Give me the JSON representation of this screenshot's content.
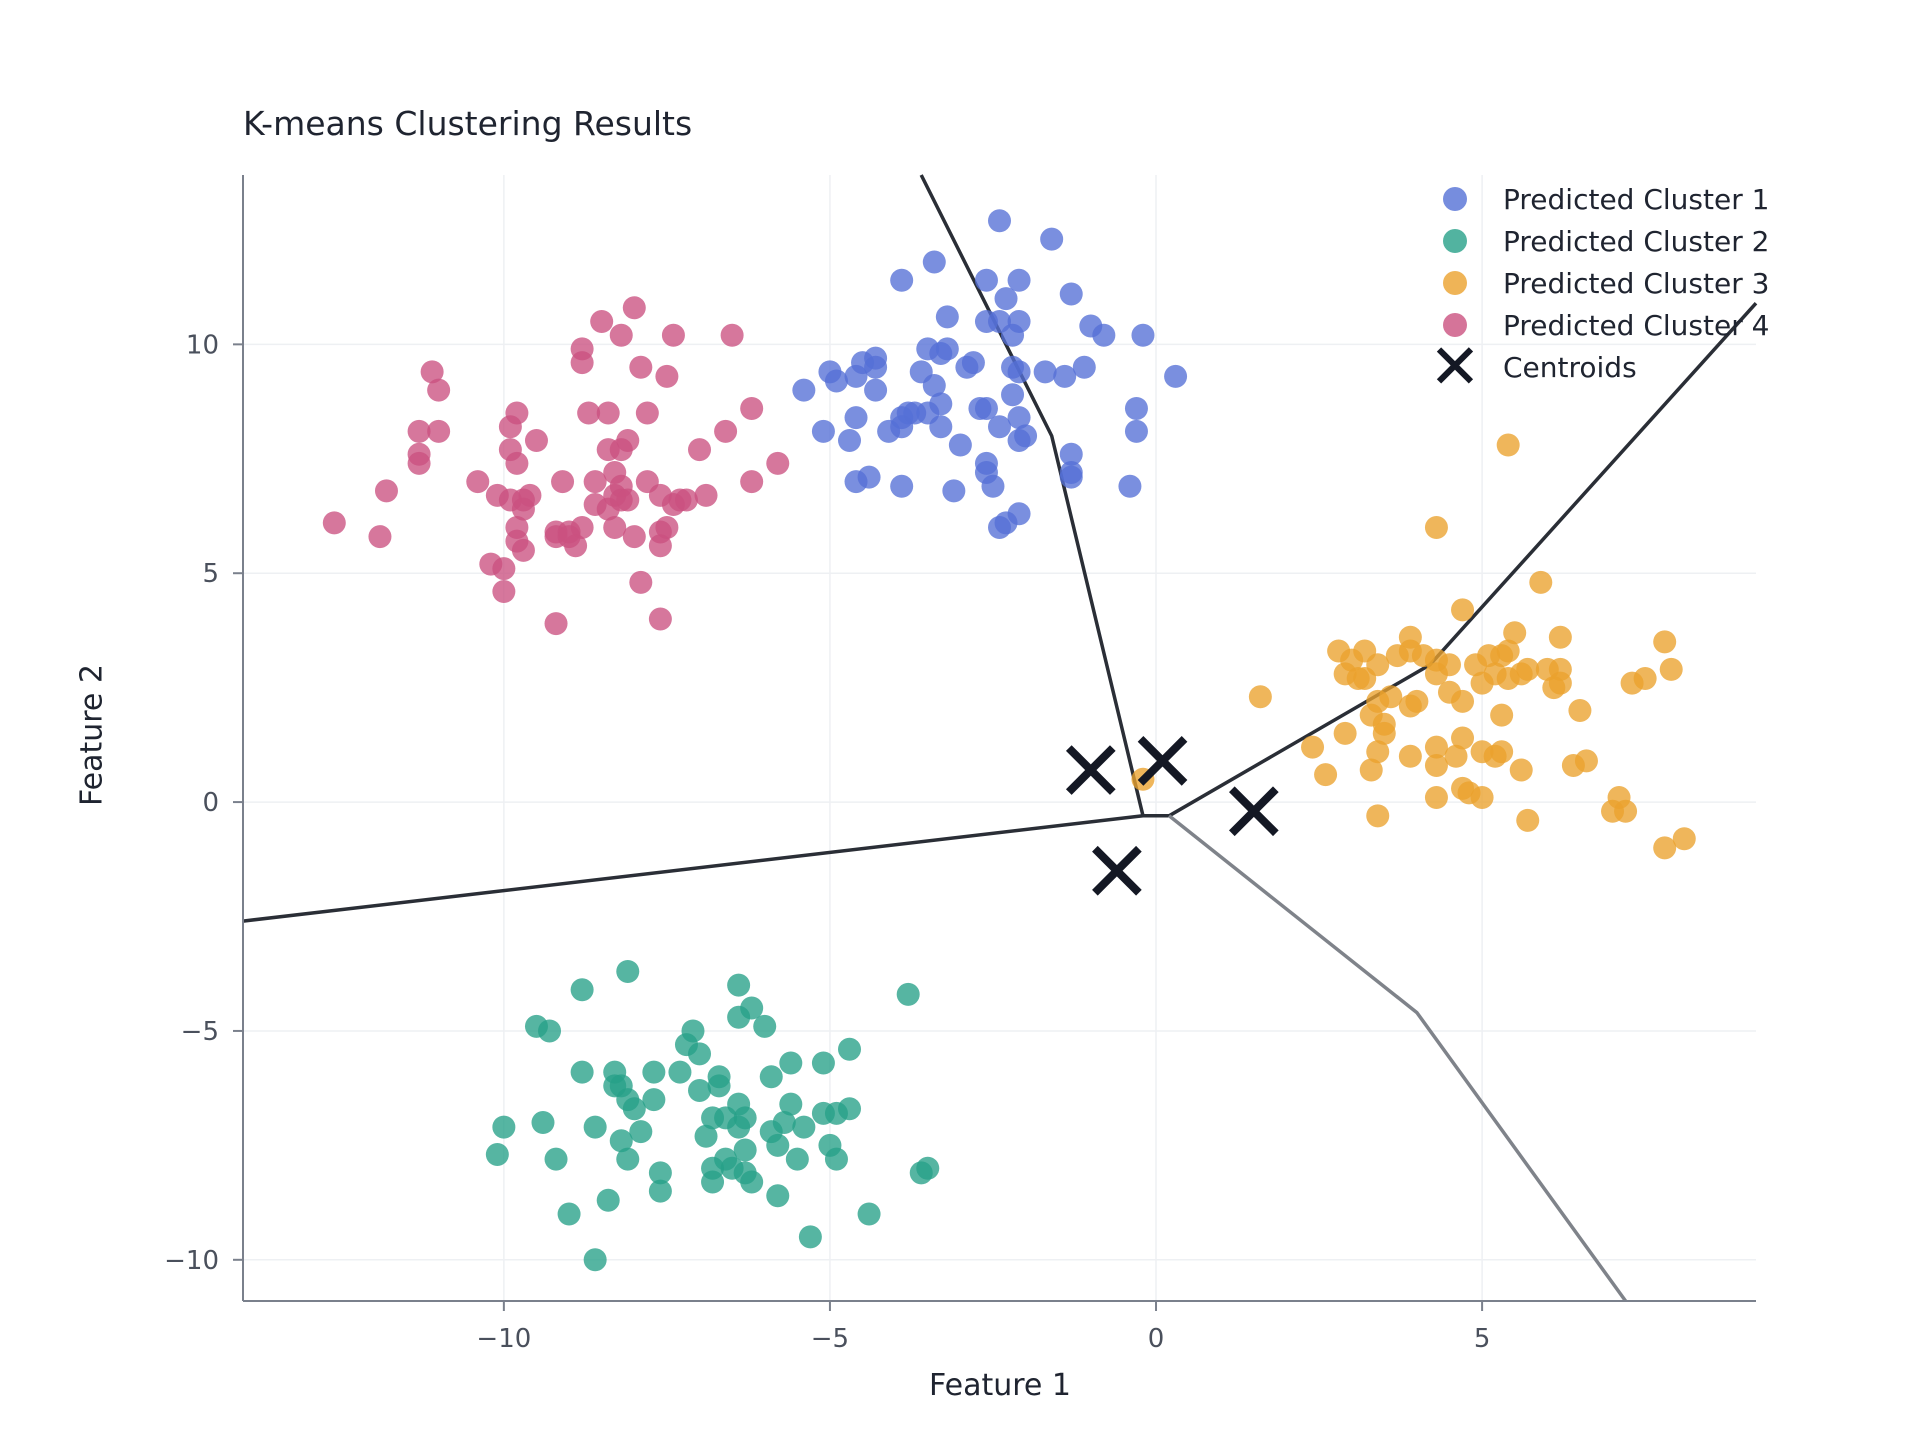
{
  "chart_data": {
    "type": "scatter",
    "title": "K-means Clustering Results",
    "xlabel": "Feature 1",
    "ylabel": "Feature 2",
    "xlim": [
      -14,
      9.2
    ],
    "ylim": [
      -10.9,
      13.7
    ],
    "xticks": [
      -10,
      -5,
      0,
      5
    ],
    "xtick_labels": [
      "−10",
      "−5",
      "0",
      "5"
    ],
    "yticks": [
      -10,
      -5,
      0,
      5,
      10
    ],
    "ytick_labels": [
      "−10",
      "−5",
      "0",
      "5",
      "10"
    ],
    "grid": true,
    "legend_position": "top-right",
    "series": [
      {
        "name": "Predicted Cluster 1",
        "color": "#5470d6",
        "points": [
          [
            -2.4,
            12.7
          ],
          [
            -1.6,
            12.3
          ],
          [
            -3.4,
            11.8
          ],
          [
            -3.9,
            11.4
          ],
          [
            -2.6,
            11.4
          ],
          [
            -2.1,
            11.4
          ],
          [
            -1.3,
            11.1
          ],
          [
            -2.3,
            11.0
          ],
          [
            -3.2,
            10.6
          ],
          [
            -2.6,
            10.5
          ],
          [
            -2.4,
            10.5
          ],
          [
            -2.1,
            10.5
          ],
          [
            -1.0,
            10.4
          ],
          [
            -2.2,
            10.2
          ],
          [
            -0.8,
            10.2
          ],
          [
            -0.2,
            10.2
          ],
          [
            -3.5,
            9.9
          ],
          [
            -3.3,
            9.8
          ],
          [
            -3.2,
            9.9
          ],
          [
            -4.3,
            9.7
          ],
          [
            -4.5,
            9.6
          ],
          [
            -4.3,
            9.5
          ],
          [
            -4.6,
            9.3
          ],
          [
            -5.0,
            9.4
          ],
          [
            -4.9,
            9.2
          ],
          [
            -5.4,
            9.0
          ],
          [
            -3.6,
            9.4
          ],
          [
            -2.8,
            9.6
          ],
          [
            -2.9,
            9.5
          ],
          [
            -2.2,
            9.5
          ],
          [
            -2.1,
            9.4
          ],
          [
            -1.7,
            9.4
          ],
          [
            -1.4,
            9.3
          ],
          [
            -1.1,
            9.5
          ],
          [
            0.3,
            9.3
          ],
          [
            -3.4,
            9.1
          ],
          [
            -4.3,
            9.0
          ],
          [
            -2.2,
            8.9
          ],
          [
            -3.3,
            8.7
          ],
          [
            -2.7,
            8.6
          ],
          [
            -2.6,
            8.6
          ],
          [
            -3.7,
            8.5
          ],
          [
            -3.5,
            8.5
          ],
          [
            -3.8,
            8.5
          ],
          [
            -3.9,
            8.4
          ],
          [
            -4.6,
            8.4
          ],
          [
            -2.1,
            8.4
          ],
          [
            -0.3,
            8.6
          ],
          [
            -3.3,
            8.2
          ],
          [
            -3.9,
            8.2
          ],
          [
            -4.1,
            8.1
          ],
          [
            -5.1,
            8.1
          ],
          [
            -2.4,
            8.2
          ],
          [
            -2.0,
            8.0
          ],
          [
            -2.1,
            7.9
          ],
          [
            -4.7,
            7.9
          ],
          [
            -0.3,
            8.1
          ],
          [
            -3.0,
            7.8
          ],
          [
            -1.3,
            7.6
          ],
          [
            -2.6,
            7.4
          ],
          [
            -2.6,
            7.2
          ],
          [
            -1.3,
            7.1
          ],
          [
            -1.3,
            7.2
          ],
          [
            -4.4,
            7.1
          ],
          [
            -4.6,
            7.0
          ],
          [
            -3.9,
            6.9
          ],
          [
            -3.1,
            6.8
          ],
          [
            -2.5,
            6.9
          ],
          [
            -0.4,
            6.9
          ],
          [
            -2.1,
            6.3
          ],
          [
            -2.3,
            6.1
          ],
          [
            -2.4,
            6.0
          ]
        ]
      },
      {
        "name": "Predicted Cluster 2",
        "color": "#27a088",
        "points": [
          [
            -8.1,
            -3.7
          ],
          [
            -8.8,
            -4.1
          ],
          [
            -6.4,
            -4.0
          ],
          [
            -3.8,
            -4.2
          ],
          [
            -6.2,
            -4.5
          ],
          [
            -6.4,
            -4.7
          ],
          [
            -6.0,
            -4.9
          ],
          [
            -9.5,
            -4.9
          ],
          [
            -9.3,
            -5.0
          ],
          [
            -7.1,
            -5.0
          ],
          [
            -7.2,
            -5.3
          ],
          [
            -7.0,
            -5.5
          ],
          [
            -5.6,
            -5.7
          ],
          [
            -5.1,
            -5.7
          ],
          [
            -4.7,
            -5.4
          ],
          [
            -8.3,
            -5.9
          ],
          [
            -8.8,
            -5.9
          ],
          [
            -7.7,
            -5.9
          ],
          [
            -7.3,
            -5.9
          ],
          [
            -6.7,
            -6.0
          ],
          [
            -6.7,
            -6.2
          ],
          [
            -5.9,
            -6.0
          ],
          [
            -8.3,
            -6.2
          ],
          [
            -8.2,
            -6.2
          ],
          [
            -7.0,
            -6.3
          ],
          [
            -8.1,
            -6.5
          ],
          [
            -7.7,
            -6.5
          ],
          [
            -6.4,
            -6.6
          ],
          [
            -8.0,
            -6.7
          ],
          [
            -5.6,
            -6.6
          ],
          [
            -5.1,
            -6.8
          ],
          [
            -4.9,
            -6.8
          ],
          [
            -4.7,
            -6.7
          ],
          [
            -6.8,
            -6.9
          ],
          [
            -6.6,
            -6.9
          ],
          [
            -6.3,
            -6.9
          ],
          [
            -5.9,
            -7.2
          ],
          [
            -6.4,
            -7.1
          ],
          [
            -5.7,
            -7.0
          ],
          [
            -5.4,
            -7.1
          ],
          [
            -9.4,
            -7.0
          ],
          [
            -10.0,
            -7.1
          ],
          [
            -8.6,
            -7.1
          ],
          [
            -7.9,
            -7.2
          ],
          [
            -8.2,
            -7.4
          ],
          [
            -6.9,
            -7.3
          ],
          [
            -6.3,
            -7.6
          ],
          [
            -5.8,
            -7.5
          ],
          [
            -5.0,
            -7.5
          ],
          [
            -5.5,
            -7.8
          ],
          [
            -4.9,
            -7.8
          ],
          [
            -10.1,
            -7.7
          ],
          [
            -9.2,
            -7.8
          ],
          [
            -8.1,
            -7.8
          ],
          [
            -6.6,
            -7.8
          ],
          [
            -6.8,
            -8.0
          ],
          [
            -6.5,
            -8.0
          ],
          [
            -6.3,
            -8.1
          ],
          [
            -6.2,
            -8.3
          ],
          [
            -6.8,
            -8.3
          ],
          [
            -7.6,
            -8.1
          ],
          [
            -7.6,
            -8.5
          ],
          [
            -3.5,
            -8.0
          ],
          [
            -3.6,
            -8.1
          ],
          [
            -5.8,
            -8.6
          ],
          [
            -8.4,
            -8.7
          ],
          [
            -9.0,
            -9.0
          ],
          [
            -4.4,
            -9.0
          ],
          [
            -5.3,
            -9.5
          ],
          [
            -8.6,
            -10.0
          ]
        ]
      },
      {
        "name": "Predicted Cluster 3",
        "color": "#eba12d",
        "points": [
          [
            5.4,
            7.8
          ],
          [
            4.3,
            6.0
          ],
          [
            5.9,
            4.8
          ],
          [
            4.7,
            4.2
          ],
          [
            3.9,
            3.6
          ],
          [
            5.5,
            3.7
          ],
          [
            6.2,
            3.6
          ],
          [
            7.8,
            3.5
          ],
          [
            2.8,
            3.3
          ],
          [
            3.2,
            3.3
          ],
          [
            3.7,
            3.2
          ],
          [
            3.9,
            3.3
          ],
          [
            4.1,
            3.2
          ],
          [
            4.3,
            3.1
          ],
          [
            4.5,
            3.0
          ],
          [
            4.9,
            3.0
          ],
          [
            5.1,
            3.2
          ],
          [
            5.3,
            3.2
          ],
          [
            5.4,
            3.3
          ],
          [
            3.0,
            3.1
          ],
          [
            3.1,
            2.7
          ],
          [
            3.4,
            3.0
          ],
          [
            5.2,
            2.8
          ],
          [
            5.6,
            2.8
          ],
          [
            5.7,
            2.9
          ],
          [
            6.0,
            2.9
          ],
          [
            6.2,
            2.9
          ],
          [
            2.9,
            2.8
          ],
          [
            3.2,
            2.7
          ],
          [
            4.3,
            2.8
          ],
          [
            5.0,
            2.6
          ],
          [
            5.4,
            2.7
          ],
          [
            6.1,
            2.5
          ],
          [
            6.2,
            2.6
          ],
          [
            7.3,
            2.6
          ],
          [
            7.5,
            2.7
          ],
          [
            7.9,
            2.9
          ],
          [
            3.4,
            2.2
          ],
          [
            3.6,
            2.3
          ],
          [
            4.0,
            2.2
          ],
          [
            4.5,
            2.4
          ],
          [
            4.7,
            2.2
          ],
          [
            3.9,
            2.1
          ],
          [
            1.6,
            2.3
          ],
          [
            3.3,
            1.9
          ],
          [
            3.5,
            1.7
          ],
          [
            3.5,
            1.5
          ],
          [
            5.3,
            1.9
          ],
          [
            6.5,
            2.0
          ],
          [
            2.9,
            1.5
          ],
          [
            4.7,
            1.4
          ],
          [
            2.4,
            1.2
          ],
          [
            3.4,
            1.1
          ],
          [
            4.3,
            1.2
          ],
          [
            4.6,
            1.0
          ],
          [
            5.0,
            1.1
          ],
          [
            5.2,
            1.0
          ],
          [
            5.3,
            1.1
          ],
          [
            6.6,
            0.9
          ],
          [
            3.9,
            1.0
          ],
          [
            4.3,
            0.8
          ],
          [
            3.3,
            0.7
          ],
          [
            5.6,
            0.7
          ],
          [
            6.4,
            0.8
          ],
          [
            2.6,
            0.6
          ],
          [
            4.7,
            0.3
          ],
          [
            4.8,
            0.2
          ],
          [
            5.0,
            0.1
          ],
          [
            4.3,
            0.1
          ],
          [
            7.1,
            0.1
          ],
          [
            3.4,
            -0.3
          ],
          [
            5.7,
            -0.4
          ],
          [
            7.0,
            -0.2
          ],
          [
            7.2,
            -0.2
          ],
          [
            7.8,
            -1.0
          ],
          [
            8.1,
            -0.8
          ],
          [
            -0.2,
            0.5
          ]
        ]
      },
      {
        "name": "Predicted Cluster 4",
        "color": "#cb5180",
        "points": [
          [
            -8.0,
            10.8
          ],
          [
            -8.5,
            10.5
          ],
          [
            -8.2,
            10.2
          ],
          [
            -7.4,
            10.2
          ],
          [
            -6.5,
            10.2
          ],
          [
            -8.8,
            9.9
          ],
          [
            -8.8,
            9.6
          ],
          [
            -7.9,
            9.5
          ],
          [
            -7.5,
            9.3
          ],
          [
            -11.1,
            9.4
          ],
          [
            -11.0,
            9.0
          ],
          [
            -8.7,
            8.5
          ],
          [
            -8.4,
            8.5
          ],
          [
            -7.8,
            8.5
          ],
          [
            -9.8,
            8.5
          ],
          [
            -9.9,
            8.2
          ],
          [
            -11.3,
            8.1
          ],
          [
            -11.0,
            8.1
          ],
          [
            -6.2,
            8.6
          ],
          [
            -6.6,
            8.1
          ],
          [
            -8.1,
            7.9
          ],
          [
            -9.5,
            7.9
          ],
          [
            -9.9,
            7.7
          ],
          [
            -9.8,
            7.4
          ],
          [
            -11.3,
            7.6
          ],
          [
            -11.3,
            7.4
          ],
          [
            -8.4,
            7.7
          ],
          [
            -8.2,
            7.7
          ],
          [
            -7.0,
            7.7
          ],
          [
            -8.3,
            7.2
          ],
          [
            -8.6,
            7.0
          ],
          [
            -9.1,
            7.0
          ],
          [
            -8.2,
            6.9
          ],
          [
            -7.8,
            7.0
          ],
          [
            -6.2,
            7.0
          ],
          [
            -5.8,
            7.4
          ],
          [
            -10.4,
            7.0
          ],
          [
            -10.1,
            6.7
          ],
          [
            -9.9,
            6.6
          ],
          [
            -9.7,
            6.6
          ],
          [
            -9.6,
            6.7
          ],
          [
            -8.2,
            6.6
          ],
          [
            -8.3,
            6.7
          ],
          [
            -8.1,
            6.6
          ],
          [
            -7.6,
            6.7
          ],
          [
            -7.4,
            6.5
          ],
          [
            -7.3,
            6.6
          ],
          [
            -7.2,
            6.6
          ],
          [
            -6.9,
            6.7
          ],
          [
            -11.8,
            6.8
          ],
          [
            -9.7,
            6.4
          ],
          [
            -8.6,
            6.5
          ],
          [
            -8.4,
            6.4
          ],
          [
            -12.6,
            6.1
          ],
          [
            -9.8,
            6.0
          ],
          [
            -8.8,
            6.0
          ],
          [
            -9.0,
            5.9
          ],
          [
            -9.2,
            5.9
          ],
          [
            -8.3,
            6.0
          ],
          [
            -8.0,
            5.8
          ],
          [
            -7.6,
            5.9
          ],
          [
            -7.5,
            6.0
          ],
          [
            -11.9,
            5.8
          ],
          [
            -9.8,
            5.7
          ],
          [
            -9.7,
            5.5
          ],
          [
            -9.2,
            5.8
          ],
          [
            -9.0,
            5.8
          ],
          [
            -8.9,
            5.6
          ],
          [
            -7.6,
            5.6
          ],
          [
            -10.2,
            5.2
          ],
          [
            -10.0,
            5.1
          ],
          [
            -7.9,
            4.8
          ],
          [
            -10.0,
            4.6
          ],
          [
            -9.2,
            3.9
          ],
          [
            -7.6,
            4.0
          ]
        ]
      },
      {
        "name": "Centroids",
        "color": "#141824",
        "marker": "x",
        "points": [
          [
            -1.0,
            0.7
          ],
          [
            0.1,
            0.9
          ],
          [
            1.5,
            -0.2
          ],
          [
            -0.6,
            -1.5
          ]
        ]
      }
    ],
    "boundaries": [
      {
        "color": "#2a2e36",
        "points": [
          [
            -3.6,
            13.7
          ],
          [
            -1.6,
            8.0
          ],
          [
            -0.2,
            -0.3
          ],
          [
            0.2,
            -0.3
          ]
        ]
      },
      {
        "color": "#2a2e36",
        "points": [
          [
            0.2,
            -0.3
          ],
          [
            4.2,
            3.0
          ],
          [
            9.2,
            10.9
          ]
        ]
      },
      {
        "color": "#2a2e36",
        "points": [
          [
            -14,
            -2.6
          ],
          [
            -0.2,
            -0.3
          ]
        ]
      },
      {
        "color": "#7f838a",
        "points": [
          [
            0.2,
            -0.3
          ],
          [
            4.0,
            -4.6
          ],
          [
            7.2,
            -10.9
          ]
        ]
      }
    ]
  }
}
